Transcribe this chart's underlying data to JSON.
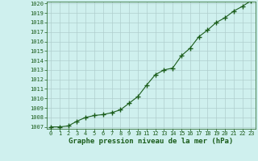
{
  "x": [
    0,
    1,
    2,
    3,
    4,
    5,
    6,
    7,
    8,
    9,
    10,
    11,
    12,
    13,
    14,
    15,
    16,
    17,
    18,
    19,
    20,
    21,
    22,
    23
  ],
  "y": [
    1007.0,
    1007.0,
    1007.1,
    1007.6,
    1008.0,
    1008.2,
    1008.3,
    1008.5,
    1008.8,
    1009.5,
    1010.2,
    1011.4,
    1012.5,
    1013.0,
    1013.2,
    1014.5,
    1015.3,
    1016.5,
    1017.2,
    1018.0,
    1018.5,
    1019.2,
    1019.7,
    1020.3
  ],
  "ylim_min": 1007,
  "ylim_max": 1020,
  "xlim_min": 0,
  "xlim_max": 23,
  "yticks": [
    1007,
    1008,
    1009,
    1010,
    1011,
    1012,
    1013,
    1014,
    1015,
    1016,
    1017,
    1018,
    1019,
    1020
  ],
  "xticks": [
    0,
    1,
    2,
    3,
    4,
    5,
    6,
    7,
    8,
    9,
    10,
    11,
    12,
    13,
    14,
    15,
    16,
    17,
    18,
    19,
    20,
    21,
    22,
    23
  ],
  "line_color": "#1a5c1a",
  "bg_color": "#cff0ee",
  "grid_color": "#b0cece",
  "xlabel": "Graphe pression niveau de la mer (hPa)",
  "line_width": 0.8,
  "marker_size": 4,
  "tick_fontsize": 5,
  "label_fontsize": 6.5
}
